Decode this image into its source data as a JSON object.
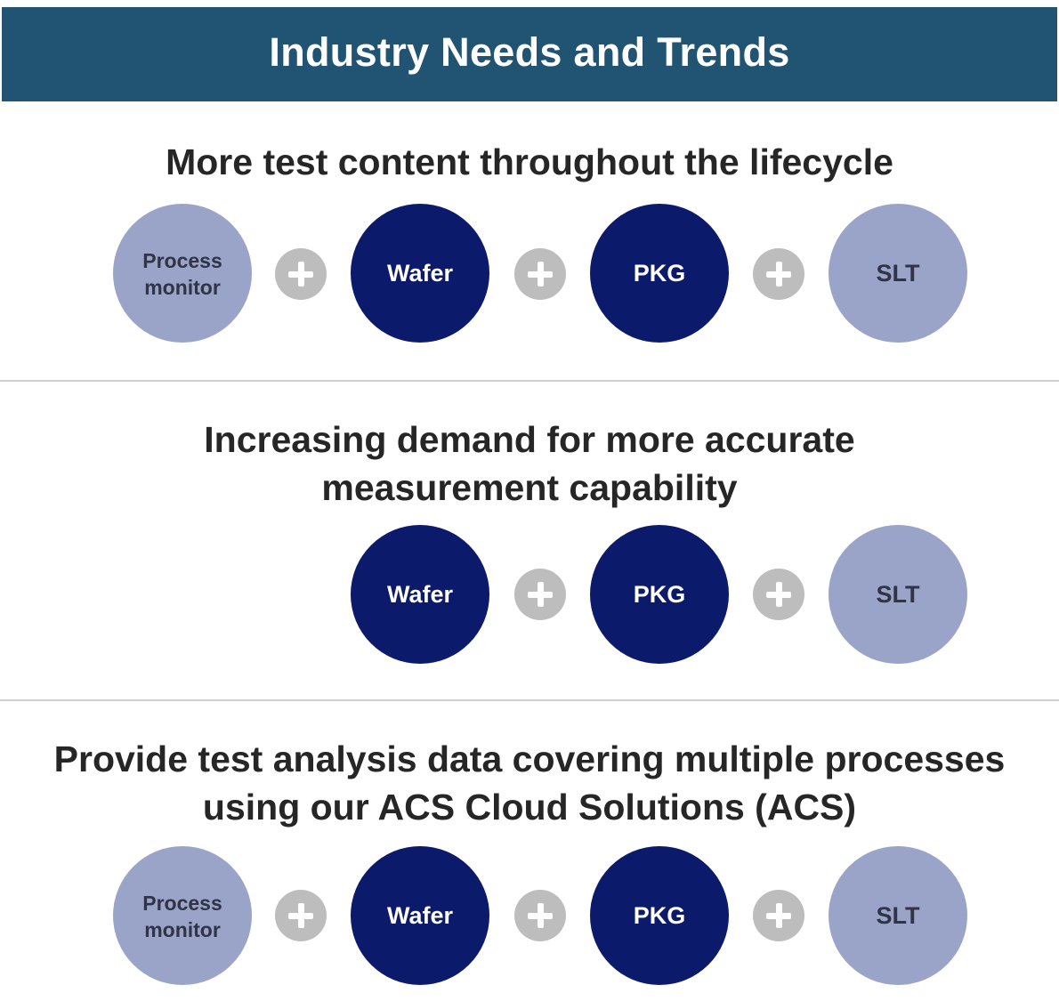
{
  "header": {
    "title": "Industry Needs and Trends"
  },
  "sections": [
    {
      "title_lines": [
        "More test content throughout the lifecycle"
      ],
      "nodes": [
        {
          "label": "Process monitor",
          "label_lines": [
            "Process",
            "monitor"
          ],
          "style": "light"
        },
        {
          "label": "Wafer",
          "style": "dark"
        },
        {
          "label": "PKG",
          "style": "dark"
        },
        {
          "label": "SLT",
          "style": "light"
        }
      ]
    },
    {
      "title_lines": [
        "Increasing demand for more accurate",
        "measurement capability"
      ],
      "nodes": [
        {
          "label": "Wafer",
          "style": "dark"
        },
        {
          "label": "PKG",
          "style": "dark"
        },
        {
          "label": "SLT",
          "style": "light"
        }
      ]
    },
    {
      "title_lines": [
        "Provide test analysis data covering multiple processes",
        "using our ACS Cloud Solutions (ACS)"
      ],
      "nodes": [
        {
          "label": "Process monitor",
          "label_lines": [
            "Process",
            "monitor"
          ],
          "style": "light"
        },
        {
          "label": "Wafer",
          "style": "dark"
        },
        {
          "label": "PKG",
          "style": "dark"
        },
        {
          "label": "SLT",
          "style": "light"
        }
      ]
    }
  ],
  "connector_icon": "plus-icon",
  "colors": {
    "header_bg": "#215373",
    "dark_node": "#0c1a6b",
    "light_node": "#9aa4c8",
    "plus_bg": "#bdbdbd",
    "divider": "#cfcfcf"
  }
}
